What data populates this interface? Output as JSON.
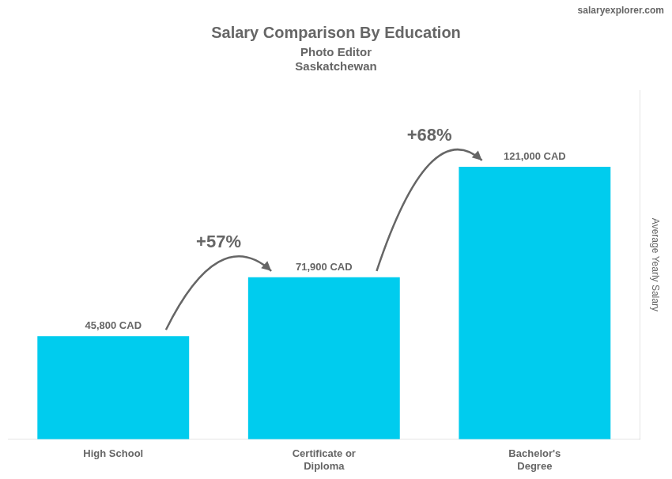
{
  "chart_data": {
    "type": "bar",
    "title": "Salary Comparison By Education",
    "subtitle": [
      "Photo Editor",
      "Saskatchewan"
    ],
    "watermark": "salaryexplorer.com",
    "y_label": "Average Yearly Salary",
    "categories": [
      "High School",
      "Certificate or\nDiploma",
      "Bachelor's\nDegree"
    ],
    "values": [
      45800,
      71900,
      121000
    ],
    "value_labels": [
      "45,800 CAD",
      "71,900 CAD",
      "121,000 CAD"
    ],
    "data_labels": true,
    "color": "#00ccee",
    "ylim": [
      0,
      155000
    ],
    "tick_labels": "x",
    "grid": false,
    "annotations": [
      {
        "from": 0,
        "to": 1,
        "label": "+57%"
      },
      {
        "from": 1,
        "to": 2,
        "label": "+68%"
      }
    ]
  }
}
